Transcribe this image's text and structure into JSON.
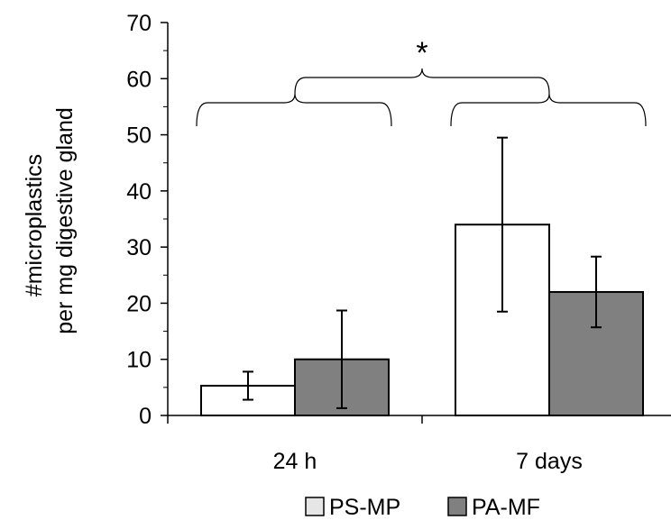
{
  "chart_data": {
    "type": "bar",
    "categories": [
      "24 h",
      "7 days"
    ],
    "series": [
      {
        "name": "PS-MP",
        "values": [
          5.3,
          34.0
        ],
        "errors": [
          2.5,
          15.5
        ],
        "color": "#ffffff"
      },
      {
        "name": "PA-MF",
        "values": [
          10.0,
          22.0
        ],
        "errors": [
          8.7,
          6.3
        ],
        "color": "#808080"
      }
    ],
    "ylabel_lines": [
      "#microplastics",
      "per mg digestive gland"
    ],
    "ylim": [
      0,
      70
    ],
    "yticks": [
      0,
      10,
      20,
      30,
      40,
      50,
      60,
      70
    ],
    "grid": false,
    "legend_position": "bottom",
    "significance": {
      "label": "*",
      "groups": [
        "24 h",
        "7 days"
      ]
    }
  }
}
